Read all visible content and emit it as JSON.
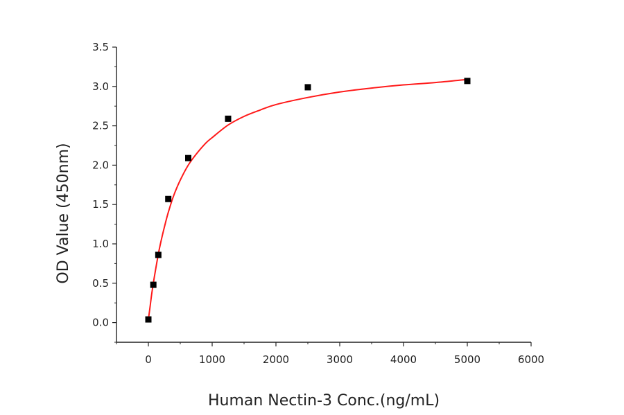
{
  "chart_data": {
    "type": "scatter",
    "title": "",
    "xlabel": "Human Nectin-3 Conc.(ng/mL)",
    "ylabel": "OD Value (450nm)",
    "xlim": [
      -500,
      6000
    ],
    "ylim": [
      -0.25,
      3.5
    ],
    "x_ticks": [
      0,
      1000,
      2000,
      3000,
      4000,
      5000,
      6000
    ],
    "x_tick_labels": [
      "0",
      "1000",
      "2000",
      "3000",
      "4000",
      "5000",
      "6000"
    ],
    "y_ticks": [
      0.0,
      0.5,
      1.0,
      1.5,
      2.0,
      2.5,
      3.0,
      3.5
    ],
    "y_tick_labels": [
      "0.0",
      "0.5",
      "1.0",
      "1.5",
      "2.0",
      "2.5",
      "3.0",
      "3.5"
    ],
    "grid": false,
    "legend": "none",
    "series": [
      {
        "kind": "points",
        "marker": "square",
        "color": "#000000",
        "x": [
          0,
          78,
          156,
          312,
          625,
          1250,
          2500,
          5000
        ],
        "y": [
          0.04,
          0.48,
          0.86,
          1.57,
          2.09,
          2.59,
          2.99,
          3.07
        ]
      },
      {
        "kind": "fit-curve",
        "color": "#ff1a1a",
        "x": [
          0,
          25,
          50,
          78,
          100,
          156,
          200,
          250,
          312,
          400,
          500,
          625,
          750,
          900,
          1000,
          1250,
          1500,
          1750,
          2000,
          2500,
          3000,
          3500,
          4000,
          4500,
          5000
        ],
        "y": [
          0.04,
          0.19,
          0.35,
          0.5,
          0.61,
          0.87,
          1.04,
          1.21,
          1.4,
          1.62,
          1.81,
          2.0,
          2.14,
          2.28,
          2.35,
          2.51,
          2.62,
          2.7,
          2.77,
          2.86,
          2.93,
          2.98,
          3.02,
          3.05,
          3.09
        ]
      }
    ]
  }
}
